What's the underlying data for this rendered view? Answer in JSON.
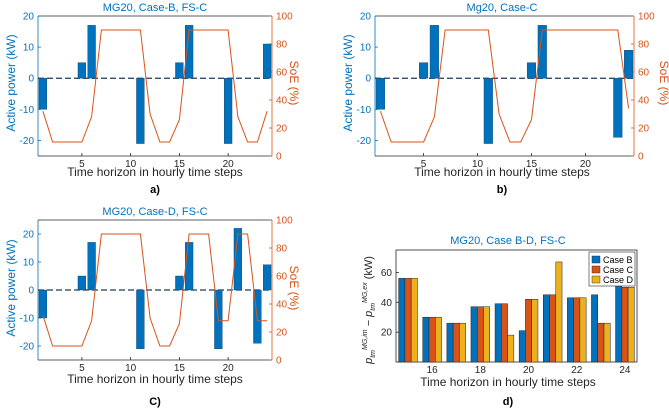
{
  "panels": [
    {
      "label": "a)",
      "title": "MG20, Case-B, FS-C",
      "ylabel": "Active power (kW)",
      "y2label": "SoE (%)",
      "xlabel": "Time horizon in hourly time steps"
    },
    {
      "label": "b)",
      "title": "Mg20, Case-C",
      "ylabel": "Active power (kW)",
      "y2label": "SoE (%)",
      "xlabel": "Time horizon in hourly time steps"
    },
    {
      "label": "C)",
      "title": "MG20, Case-D, FS-C",
      "ylabel": "Active power (kW)",
      "y2label": "SoE (%)",
      "xlabel": "Time horizon in hourly time steps"
    },
    {
      "label": "d)",
      "title": "MG20, Case B-D, FS-C",
      "ylabel": "p_tm^{MG,im} − p_tm^{MG,ex} (kW)",
      "xlabel": "Time horizon in hourly time steps"
    }
  ],
  "colors": {
    "bar": "#0072BD",
    "soe": "#D95319",
    "axis_left": "#0072BD",
    "axis_right": "#D95319",
    "title": "#0072BD",
    "caseB": "#0072BD",
    "caseC": "#D95319",
    "caseD": "#EDB120"
  },
  "chart_data": [
    {
      "type": "bar",
      "title": "MG20, Case-B, FS-C",
      "xlabel": "Time horizon in hourly time steps",
      "ylabel": "Active power (kW)",
      "y2label": "SoE (%)",
      "xlim": [
        0.5,
        24.5
      ],
      "ylim": [
        -25,
        20
      ],
      "y2lim": [
        0,
        100
      ],
      "xticks": [
        5,
        10,
        15,
        20
      ],
      "yticks": [
        -20,
        -10,
        0,
        10,
        20
      ],
      "y2ticks": [
        0,
        20,
        40,
        60,
        80,
        100
      ],
      "x": [
        1,
        2,
        3,
        4,
        5,
        6,
        7,
        8,
        9,
        10,
        11,
        12,
        13,
        14,
        15,
        16,
        17,
        18,
        19,
        20,
        21,
        22,
        23,
        24
      ],
      "series": [
        {
          "kind": "bar",
          "axis": "left",
          "values": [
            -10,
            0,
            0,
            0,
            5,
            17,
            0,
            0,
            0,
            0,
            -21,
            0,
            0,
            0,
            5,
            17,
            0,
            0,
            0,
            -21,
            0,
            0,
            0,
            11
          ]
        },
        {
          "kind": "line",
          "axis": "right",
          "values": [
            32,
            10,
            10,
            10,
            10,
            28,
            90,
            90,
            90,
            90,
            90,
            30,
            10,
            10,
            26,
            90,
            90,
            90,
            90,
            90,
            28,
            10,
            10,
            32
          ]
        }
      ]
    },
    {
      "type": "bar",
      "title": "Mg20, Case-C",
      "xlabel": "Time horizon in hourly time steps",
      "ylabel": "Active power (kW)",
      "y2label": "SoE (%)",
      "xlim": [
        0.5,
        24.5
      ],
      "ylim": [
        -25,
        20
      ],
      "y2lim": [
        0,
        100
      ],
      "xticks": [
        5,
        10,
        15,
        20
      ],
      "yticks": [
        -20,
        -10,
        0,
        10,
        20
      ],
      "y2ticks": [
        0,
        20,
        40,
        60,
        80,
        100
      ],
      "x": [
        1,
        2,
        3,
        4,
        5,
        6,
        7,
        8,
        9,
        10,
        11,
        12,
        13,
        14,
        15,
        16,
        17,
        18,
        19,
        20,
        21,
        22,
        23,
        24
      ],
      "series": [
        {
          "kind": "bar",
          "axis": "left",
          "values": [
            -10,
            0,
            0,
            0,
            5,
            17,
            0,
            0,
            0,
            0,
            -21,
            0,
            0,
            0,
            5,
            17,
            0,
            0,
            0,
            0,
            0,
            0,
            -19,
            9
          ]
        },
        {
          "kind": "line",
          "axis": "right",
          "values": [
            32,
            10,
            10,
            10,
            10,
            28,
            90,
            90,
            90,
            90,
            90,
            30,
            10,
            10,
            26,
            90,
            90,
            90,
            90,
            90,
            90,
            90,
            90,
            34
          ]
        }
      ]
    },
    {
      "type": "bar",
      "title": "MG20, Case-D, FS-C",
      "xlabel": "Time horizon in hourly time steps",
      "ylabel": "Active power (kW)",
      "y2label": "SoE (%)",
      "xlim": [
        0.5,
        24.5
      ],
      "ylim": [
        -25,
        25
      ],
      "y2lim": [
        0,
        100
      ],
      "xticks": [
        5,
        10,
        15,
        20
      ],
      "yticks": [
        -20,
        -10,
        0,
        10,
        20
      ],
      "y2ticks": [
        0,
        20,
        40,
        60,
        80,
        100
      ],
      "x": [
        1,
        2,
        3,
        4,
        5,
        6,
        7,
        8,
        9,
        10,
        11,
        12,
        13,
        14,
        15,
        16,
        17,
        18,
        19,
        20,
        21,
        22,
        23,
        24
      ],
      "series": [
        {
          "kind": "bar",
          "axis": "left",
          "values": [
            -10,
            0,
            0,
            0,
            5,
            17,
            0,
            0,
            0,
            0,
            -21,
            0,
            0,
            0,
            5,
            17,
            0,
            0,
            -21,
            0,
            22,
            0,
            -19,
            9
          ]
        },
        {
          "kind": "line",
          "axis": "right",
          "values": [
            32,
            10,
            10,
            10,
            10,
            28,
            90,
            90,
            90,
            90,
            90,
            30,
            10,
            10,
            26,
            90,
            90,
            90,
            28,
            28,
            90,
            90,
            28,
            28
          ]
        }
      ]
    },
    {
      "type": "bar",
      "title": "MG20, Case B-D, FS-C",
      "xlabel": "Time horizon in hourly time steps",
      "ylabel": "p_tm^{MG,im} − p_tm^{MG,ex} (kW)",
      "xlim": [
        14.5,
        24.5
      ],
      "ylim": [
        0,
        75
      ],
      "xticks": [
        16,
        18,
        20,
        22,
        24
      ],
      "yticks": [
        20,
        40,
        60
      ],
      "categories": [
        15,
        16,
        17,
        18,
        19,
        20,
        21,
        22,
        23,
        24
      ],
      "legend": {
        "position": "top-right"
      },
      "series": [
        {
          "name": "Case B",
          "values": [
            56,
            30,
            26,
            37,
            39,
            21,
            45,
            43,
            45,
            51
          ]
        },
        {
          "name": "Case C",
          "values": [
            56,
            30,
            26,
            37,
            39,
            42,
            45,
            43,
            26,
            50
          ]
        },
        {
          "name": "Case D",
          "values": [
            56,
            30,
            26,
            37,
            18,
            42,
            67,
            43,
            26,
            50
          ]
        }
      ]
    }
  ]
}
